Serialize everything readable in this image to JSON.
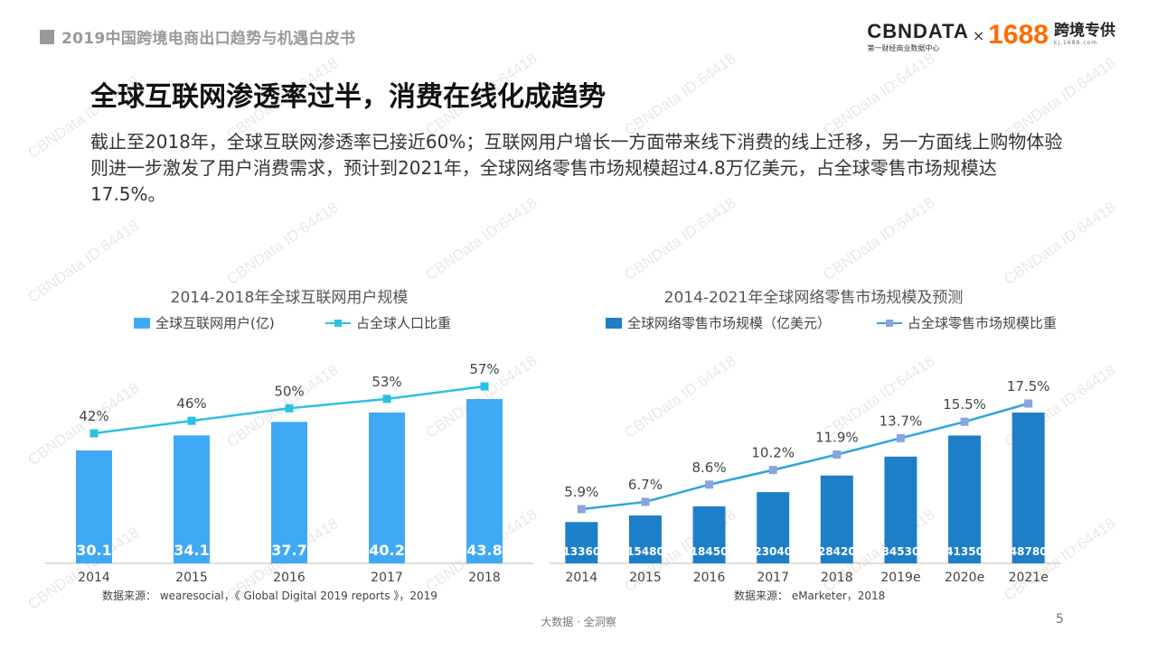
{
  "header": {
    "doc_title": "2019中国跨境电商出口趋势与机遇白皮书"
  },
  "logo": {
    "cbn": "CBNDATA",
    "cbn_sub": "第一财经商业数据中心",
    "x": "×",
    "brand": "1688",
    "brand_cn": "跨境专供",
    "brand_sub": "kj.1688.com"
  },
  "watermark": "CBNData ID:64418",
  "slide": {
    "title": "全球互联网渗透率过半，消费在线化成趋势",
    "description": "截止至2018年，全球互联网渗透率已接近60%；互联网用户增长一方面带来线下消费的线上迁移，另一方面线上购物体验则进一步激发了用户消费需求，预计到2021年，全球网络零售市场规模超过4.8万亿美元，占全球零售市场规模达17.5%。"
  },
  "chart_data": [
    {
      "type": "bar",
      "title": "2014-2018年全球互联网用户规模",
      "categories": [
        "2014",
        "2015",
        "2016",
        "2017",
        "2018"
      ],
      "series": [
        {
          "name": "全球互联网用户(亿)",
          "kind": "bar",
          "values": [
            30.1,
            34.1,
            37.7,
            40.2,
            43.8
          ],
          "color": "#3fa9f5",
          "labels": [
            "30.1",
            "34.1",
            "37.7",
            "40.2",
            "43.8"
          ]
        },
        {
          "name": "占全球人口比重",
          "kind": "line",
          "values": [
            42,
            46,
            50,
            53,
            57
          ],
          "color": "#2bc0e4",
          "labels": [
            "42%",
            "46%",
            "50%",
            "53%",
            "57%"
          ]
        }
      ],
      "source": "数据来源： wearesocial，《 Global Digital 2019 reports 》，2019"
    },
    {
      "type": "bar",
      "title": "2014-2021年全球网络零售市场规模及预测",
      "categories": [
        "2014",
        "2015",
        "2016",
        "2017",
        "2018",
        "2019e",
        "2020e",
        "2021e"
      ],
      "series": [
        {
          "name": "全球网络零售市场规模（亿美元）",
          "kind": "bar",
          "values": [
            13360,
            15480,
            18450,
            23040,
            28420,
            34530,
            41350,
            48780
          ],
          "color": "#1e7fc9",
          "labels": [
            "13360",
            "15480",
            "18450",
            "23040",
            "28420",
            "34530",
            "41350",
            "48780"
          ]
        },
        {
          "name": "占全球零售市场规模比重",
          "kind": "line",
          "values": [
            5.9,
            6.7,
            8.6,
            10.2,
            11.9,
            13.7,
            15.5,
            17.5
          ],
          "color": "#2fa4dc",
          "marker_color": "#8aa4e0",
          "labels": [
            "5.9%",
            "6.7%",
            "8.6%",
            "10.2%",
            "11.9%",
            "13.7%",
            "15.5%",
            "17.5%"
          ]
        }
      ],
      "source": "数据来源： eMarketer，2018"
    }
  ],
  "footer": {
    "text": "大数据 · 全洞察",
    "page": "5"
  }
}
